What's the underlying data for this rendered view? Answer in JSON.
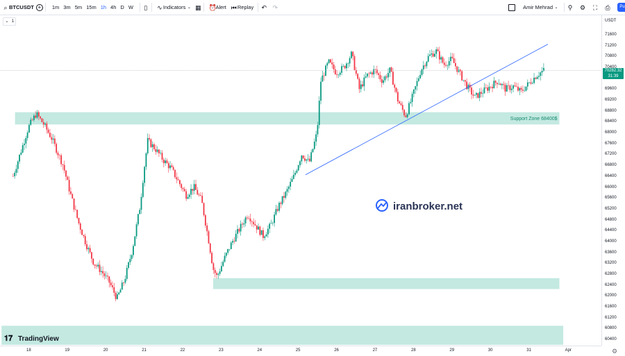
{
  "toolbar": {
    "symbol": "BTCUSDT",
    "timeframes": [
      "1m",
      "3m",
      "5m",
      "15m",
      "1h",
      "4h",
      "D",
      "W"
    ],
    "active_timeframe": "1h",
    "indicators_label": "Indicators",
    "alert_label": "Alert",
    "replay_label": "Replay",
    "user_name": "Amir Mehrad",
    "publish_label": "Pu"
  },
  "legend": {
    "collapse_label": "1"
  },
  "currency": "USDT",
  "last_price": {
    "value": "70282.32",
    "countdown": "31:39"
  },
  "branding": {
    "logo_text": "TradingView",
    "watermark": "iranbroker.net"
  },
  "colors": {
    "up": "#089981",
    "down": "#f23645",
    "zone": "#b9e5dc",
    "trendline": "#2962ff",
    "last_price_bg": "#089981"
  },
  "chart_data": {
    "type": "candlestick",
    "symbol": "BTCUSDT",
    "interval": "1h",
    "x_ticks": [
      "18",
      "19",
      "20",
      "21",
      "22",
      "23",
      "24",
      "25",
      "26",
      "27",
      "28",
      "29",
      "30",
      "31",
      "Apr"
    ],
    "y_ticks": [
      71600,
      71200,
      70800,
      70400,
      70000,
      69600,
      69200,
      68800,
      68400,
      68000,
      67600,
      67200,
      66800,
      66400,
      66000,
      65600,
      65200,
      64800,
      64400,
      64000,
      63600,
      63200,
      62800,
      62400,
      62000,
      61600,
      61200,
      60800,
      60400
    ],
    "ylim": [
      60200,
      72100
    ],
    "series_close_path": [
      [
        17.6,
        66400
      ],
      [
        17.8,
        67300
      ],
      [
        18.0,
        68200
      ],
      [
        18.2,
        68700
      ],
      [
        18.4,
        68300
      ],
      [
        18.6,
        67800
      ],
      [
        18.9,
        66800
      ],
      [
        19.1,
        65700
      ],
      [
        19.3,
        64700
      ],
      [
        19.5,
        63900
      ],
      [
        19.7,
        63200
      ],
      [
        19.9,
        62900
      ],
      [
        20.1,
        62500
      ],
      [
        20.3,
        61900
      ],
      [
        20.5,
        62600
      ],
      [
        20.7,
        63700
      ],
      [
        20.9,
        65300
      ],
      [
        21.0,
        66600
      ],
      [
        21.1,
        67700
      ],
      [
        21.3,
        67400
      ],
      [
        21.5,
        67000
      ],
      [
        21.7,
        66700
      ],
      [
        21.9,
        66200
      ],
      [
        22.1,
        65700
      ],
      [
        22.3,
        66000
      ],
      [
        22.5,
        65500
      ],
      [
        22.7,
        63900
      ],
      [
        22.8,
        63000
      ],
      [
        22.9,
        62700
      ],
      [
        23.1,
        63400
      ],
      [
        23.3,
        64000
      ],
      [
        23.5,
        64500
      ],
      [
        23.7,
        65000
      ],
      [
        23.9,
        64600
      ],
      [
        24.1,
        64200
      ],
      [
        24.3,
        64600
      ],
      [
        24.5,
        65300
      ],
      [
        24.7,
        65800
      ],
      [
        24.9,
        66400
      ],
      [
        25.1,
        67200
      ],
      [
        25.3,
        66900
      ],
      [
        25.5,
        68000
      ],
      [
        25.6,
        69900
      ],
      [
        25.8,
        70600
      ],
      [
        26.0,
        70200
      ],
      [
        26.2,
        70400
      ],
      [
        26.4,
        70900
      ],
      [
        26.6,
        69600
      ],
      [
        26.8,
        70100
      ],
      [
        27.0,
        70300
      ],
      [
        27.2,
        69900
      ],
      [
        27.4,
        70300
      ],
      [
        27.6,
        69200
      ],
      [
        27.8,
        68600
      ],
      [
        28.0,
        69400
      ],
      [
        28.2,
        70300
      ],
      [
        28.4,
        70800
      ],
      [
        28.6,
        71000
      ],
      [
        28.8,
        70500
      ],
      [
        29.0,
        70700
      ],
      [
        29.2,
        70200
      ],
      [
        29.4,
        69700
      ],
      [
        29.6,
        69300
      ],
      [
        29.8,
        69500
      ],
      [
        30.0,
        69700
      ],
      [
        30.2,
        69900
      ],
      [
        30.4,
        69600
      ],
      [
        30.6,
        69700
      ],
      [
        30.8,
        69500
      ],
      [
        31.0,
        69800
      ],
      [
        31.2,
        70100
      ],
      [
        31.4,
        70300
      ]
    ],
    "last_price": 70282.32,
    "support_zones": [
      {
        "label": "Support Zone 68400$",
        "from": 68300,
        "to": 68750,
        "x_from": 17.65,
        "x_to": 31.8
      },
      {
        "label": "",
        "from": 62250,
        "to": 62650,
        "x_from": 22.8,
        "x_to": 31.8
      },
      {
        "label": "",
        "from": 60200,
        "to": 60900,
        "x_from": 17.3,
        "x_to": 31.9
      }
    ],
    "trendline": {
      "x1": 25.2,
      "y1": 66450,
      "x2": 31.5,
      "y2": 71250
    },
    "grid": false
  }
}
